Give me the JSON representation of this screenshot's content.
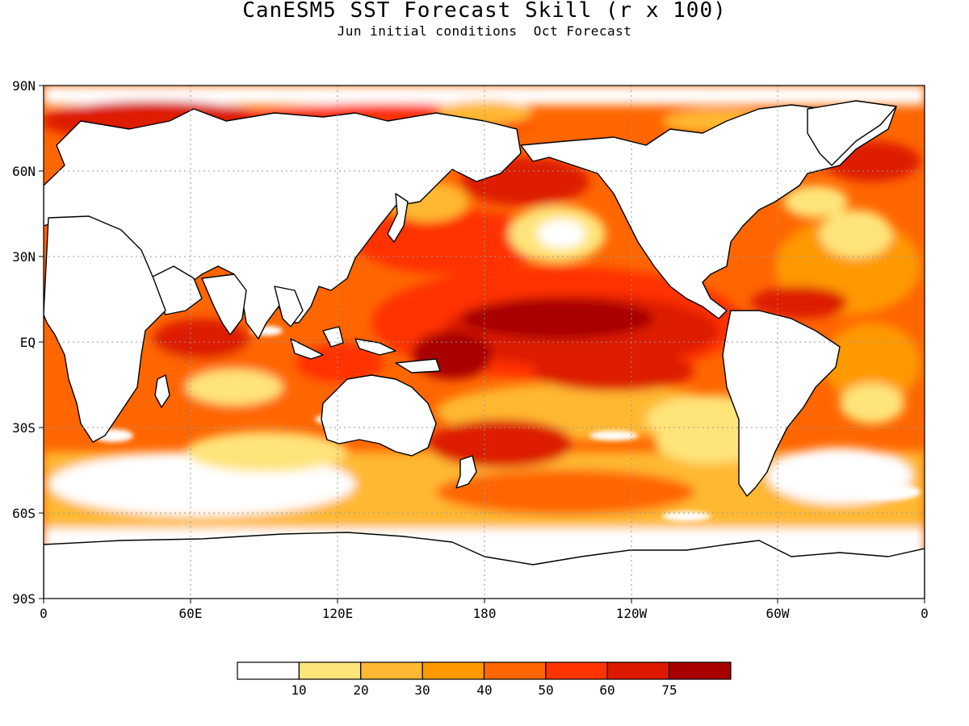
{
  "title": "CanESM5 SST Forecast Skill (r x 100)",
  "subtitle": "Jun initial conditions  Oct Forecast",
  "axes": {
    "lat_labels": [
      "90N",
      "60N",
      "30N",
      "EQ",
      "30S",
      "60S",
      "90S"
    ],
    "lon_labels": [
      "0",
      "60E",
      "120E",
      "180",
      "120W",
      "60W",
      "0"
    ]
  },
  "colorbar": {
    "colors": [
      "#ffffff",
      "#ffe47a",
      "#ffb833",
      "#ff9900",
      "#ff6600",
      "#ff3300",
      "#dd1a00",
      "#a80000"
    ],
    "tick_labels": [
      "10",
      "20",
      "30",
      "40",
      "50",
      "60",
      "75"
    ]
  },
  "map": {
    "land_color": "#ffffff",
    "coastline_color": "#000000",
    "grid": true
  }
}
